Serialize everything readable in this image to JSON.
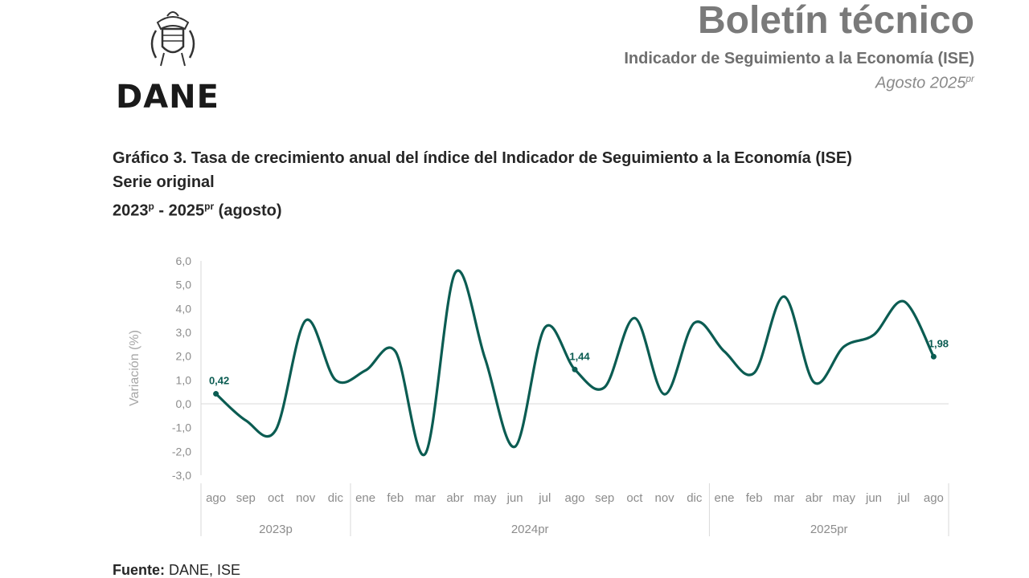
{
  "header": {
    "logo_text": "DANE",
    "title": "Boletín técnico",
    "subtitle": "Indicador de Seguimiento a la Economía (ISE)",
    "date": "Agosto 2025",
    "date_sup": "pr"
  },
  "chart_heading": {
    "line1": "Gráfico 3. Tasa de crecimiento anual del índice del Indicador de Seguimiento a la Economía (ISE)",
    "line2": "Serie original",
    "line3_a": "2023",
    "line3_a_sup": "p",
    "line3_b": " - 2025",
    "line3_b_sup": "pr",
    "line3_c": " (agosto)"
  },
  "chart_data": {
    "type": "line",
    "ylabel": "Variación (%)",
    "ylim": [
      -3.0,
      6.0
    ],
    "yticks": [
      "-3,0",
      "-2,0",
      "-1,0",
      "0,0",
      "1,0",
      "2,0",
      "3,0",
      "4,0",
      "5,0",
      "6,0"
    ],
    "ytick_values": [
      -3,
      -2,
      -1,
      0,
      1,
      2,
      3,
      4,
      5,
      6
    ],
    "categories": [
      "ago",
      "sep",
      "oct",
      "nov",
      "dic",
      "ene",
      "feb",
      "mar",
      "abr",
      "may",
      "jun",
      "jul",
      "ago",
      "sep",
      "oct",
      "nov",
      "dic",
      "ene",
      "feb",
      "mar",
      "abr",
      "may",
      "jun",
      "jul",
      "ago"
    ],
    "groups": [
      {
        "label": "2023p",
        "count": 5
      },
      {
        "label": "2024pr",
        "count": 12
      },
      {
        "label": "2025pr",
        "count": 8
      }
    ],
    "series": [
      {
        "color": "#0b5c52",
        "values": [
          0.42,
          -0.7,
          -1.1,
          3.5,
          1.0,
          1.4,
          2.2,
          -2.1,
          5.5,
          1.9,
          -1.8,
          3.2,
          1.44,
          0.7,
          3.6,
          0.4,
          3.4,
          2.2,
          1.3,
          4.5,
          0.9,
          2.4,
          2.9,
          4.3,
          1.98
        ]
      }
    ],
    "data_labels": [
      {
        "index": 0,
        "text": "0,42"
      },
      {
        "index": 12,
        "text": "1,44"
      },
      {
        "index": 24,
        "text": "1,98"
      }
    ],
    "grid": false
  },
  "source": {
    "label": "Fuente:",
    "text": " DANE, ISE"
  }
}
